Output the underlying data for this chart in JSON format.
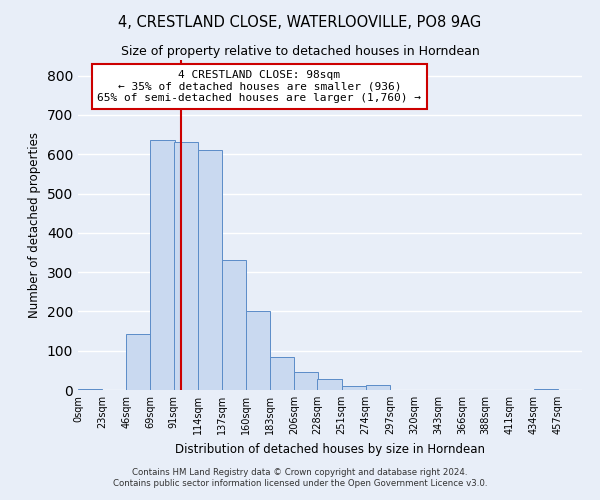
{
  "title": "4, CRESTLAND CLOSE, WATERLOOVILLE, PO8 9AG",
  "subtitle": "Size of property relative to detached houses in Horndean",
  "xlabel": "Distribution of detached houses by size in Horndean",
  "ylabel": "Number of detached properties",
  "bin_labels": [
    "0sqm",
    "23sqm",
    "46sqm",
    "69sqm",
    "91sqm",
    "114sqm",
    "137sqm",
    "160sqm",
    "183sqm",
    "206sqm",
    "228sqm",
    "251sqm",
    "274sqm",
    "297sqm",
    "320sqm",
    "343sqm",
    "366sqm",
    "388sqm",
    "411sqm",
    "434sqm",
    "457sqm"
  ],
  "bin_edges": [
    0,
    23,
    46,
    69,
    91,
    114,
    137,
    160,
    183,
    206,
    228,
    251,
    274,
    297,
    320,
    343,
    366,
    388,
    411,
    434,
    457
  ],
  "bar_heights": [
    3,
    0,
    143,
    636,
    632,
    610,
    332,
    200,
    85,
    46,
    27,
    11,
    12,
    0,
    0,
    0,
    0,
    0,
    0,
    3
  ],
  "bar_color": "#c9d9f0",
  "bar_edge_color": "#5b8cc8",
  "red_line_x": 98,
  "annotation_title": "4 CRESTLAND CLOSE: 98sqm",
  "annotation_line1": "← 35% of detached houses are smaller (936)",
  "annotation_line2": "65% of semi-detached houses are larger (1,760) →",
  "annotation_box_color": "#ffffff",
  "annotation_box_edge": "#cc0000",
  "red_line_color": "#cc0000",
  "ylim": [
    0,
    840
  ],
  "background_color": "#e8eef8",
  "footnote1": "Contains HM Land Registry data © Crown copyright and database right 2024.",
  "footnote2": "Contains public sector information licensed under the Open Government Licence v3.0."
}
